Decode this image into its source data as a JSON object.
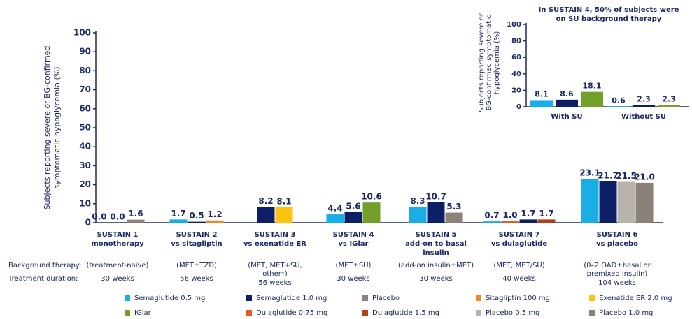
{
  "chart_data": [
    {
      "type": "bar",
      "ylabel": [
        "Subjects reporting severe or BG-confirmed",
        "symptomatic hypoglycemia (%)"
      ],
      "categories": [
        [
          "SUSTAIN 1",
          "monotherapy"
        ],
        [
          "SUSTAIN 2",
          "vs sitagliptin"
        ],
        [
          "SUSTAIN 3",
          "vs exenatide ER"
        ],
        [
          "SUSTAIN 4",
          "vs IGlar"
        ],
        [
          "SUSTAIN 5",
          "add-on to basal",
          "insulin"
        ],
        [
          "SUSTAIN 7",
          "vs dulaglutide"
        ],
        [
          "SUSTAIN 6",
          "vs placebo"
        ]
      ],
      "background_therapy": {
        "label": "Background therapy:",
        "values": [
          [
            "(treatment-naïve)"
          ],
          [
            "(MET±TZD)"
          ],
          [
            "(MET, MET+SU,",
            "other*)"
          ],
          [
            "(MET±SU)"
          ],
          [
            "(add-on insulin±MET)"
          ],
          [
            "(MET, MET/SU)"
          ],
          [
            "(0–2 OAD±basal or",
            "premixed insulin)"
          ]
        ]
      },
      "treatment_duration": {
        "label": "Treatment duration:",
        "values": [
          "30 weeks",
          "56 weeks",
          "56 weeks",
          "30 weeks",
          "30 weeks",
          "40 weeks",
          "104 weeks"
        ]
      },
      "ylim": [
        0,
        100
      ],
      "yticks": [
        0,
        10,
        20,
        30,
        40,
        50,
        60,
        70,
        80,
        90,
        100
      ],
      "series": [
        {
          "name": "Semaglutide 0.5 mg",
          "color": "#1aaee6",
          "values": [
            0,
            1.7,
            null,
            4.4,
            8.3,
            0.7,
            23.1
          ],
          "value_labels": [
            "0.0",
            "1.7",
            null,
            "4.4",
            "8.3",
            "0.7",
            "23.1"
          ]
        },
        {
          "name": "Dulaglutide 0.75 mg",
          "color": "#e8582a",
          "values": [
            null,
            null,
            null,
            null,
            null,
            1.0,
            null
          ],
          "value_labels": [
            null,
            null,
            null,
            null,
            null,
            "1.0",
            null
          ]
        },
        {
          "name": "Semaglutide 1.0 mg",
          "color": "#0c1f66",
          "values": [
            0,
            0.5,
            8.2,
            5.6,
            10.7,
            1.7,
            21.7
          ],
          "value_labels": [
            "0.0",
            "0.5",
            "8.2",
            "5.6",
            "10.7",
            "1.7",
            "21.7"
          ]
        },
        {
          "name": "Placebo",
          "color": "#8c8279",
          "values": [
            1.6,
            null,
            null,
            null,
            5.3,
            null,
            null
          ],
          "value_labels": [
            "1.6",
            null,
            null,
            null,
            "5.3",
            null,
            null
          ]
        },
        {
          "name": "Sitagliptin 100 mg",
          "color": "#e8892c",
          "values": [
            null,
            1.2,
            null,
            null,
            null,
            null,
            null
          ],
          "value_labels": [
            null,
            "1.2",
            null,
            null,
            null,
            null,
            null
          ]
        },
        {
          "name": "Exenatide ER 2.0 mg",
          "color": "#ffc20e",
          "values": [
            null,
            null,
            8.1,
            null,
            null,
            null,
            null
          ],
          "value_labels": [
            null,
            null,
            "8.1",
            null,
            null,
            null,
            null
          ]
        },
        {
          "name": "IGlar",
          "color": "#72a02a",
          "values": [
            null,
            null,
            null,
            10.6,
            null,
            null,
            null
          ],
          "value_labels": [
            null,
            null,
            null,
            "10.6",
            null,
            null,
            null
          ]
        },
        {
          "name": "Dulaglutide 1.5 mg",
          "color": "#b0401e",
          "values": [
            null,
            null,
            null,
            null,
            null,
            1.7,
            null
          ],
          "value_labels": [
            null,
            null,
            null,
            null,
            null,
            "1.7",
            null
          ]
        },
        {
          "name": "Placebo 0.5 mg",
          "color": "#b9b3ad",
          "values": [
            null,
            null,
            null,
            null,
            null,
            null,
            21.5
          ],
          "value_labels": [
            null,
            null,
            null,
            null,
            null,
            null,
            "21.5"
          ]
        },
        {
          "name": "Placebo 1.0 mg",
          "color": "#8a8178",
          "values": [
            null,
            null,
            null,
            null,
            null,
            null,
            21.0
          ],
          "value_labels": [
            null,
            null,
            null,
            null,
            null,
            null,
            "21.0"
          ]
        }
      ]
    },
    {
      "type": "bar",
      "title": [
        "In SUSTAIN 4, 50% of subjects were",
        "on SU background therapy"
      ],
      "ylabel": [
        "Subjects reporting severe or",
        "BG-confirmed symptomatic",
        "hypoglycemia (%)"
      ],
      "categories": [
        "With SU",
        "Without SU"
      ],
      "ylim": [
        0,
        100
      ],
      "yticks": [
        0,
        20,
        40,
        60,
        80,
        100
      ],
      "series": [
        {
          "name": "Semaglutide 0.5 mg",
          "color": "#1aaee6",
          "values": [
            8.1,
            0.6
          ]
        },
        {
          "name": "Semaglutide 1.0 mg",
          "color": "#0c1f66",
          "values": [
            8.6,
            2.3
          ]
        },
        {
          "name": "IGlar",
          "color": "#72a02a",
          "values": [
            18.1,
            2.3
          ]
        }
      ]
    }
  ]
}
